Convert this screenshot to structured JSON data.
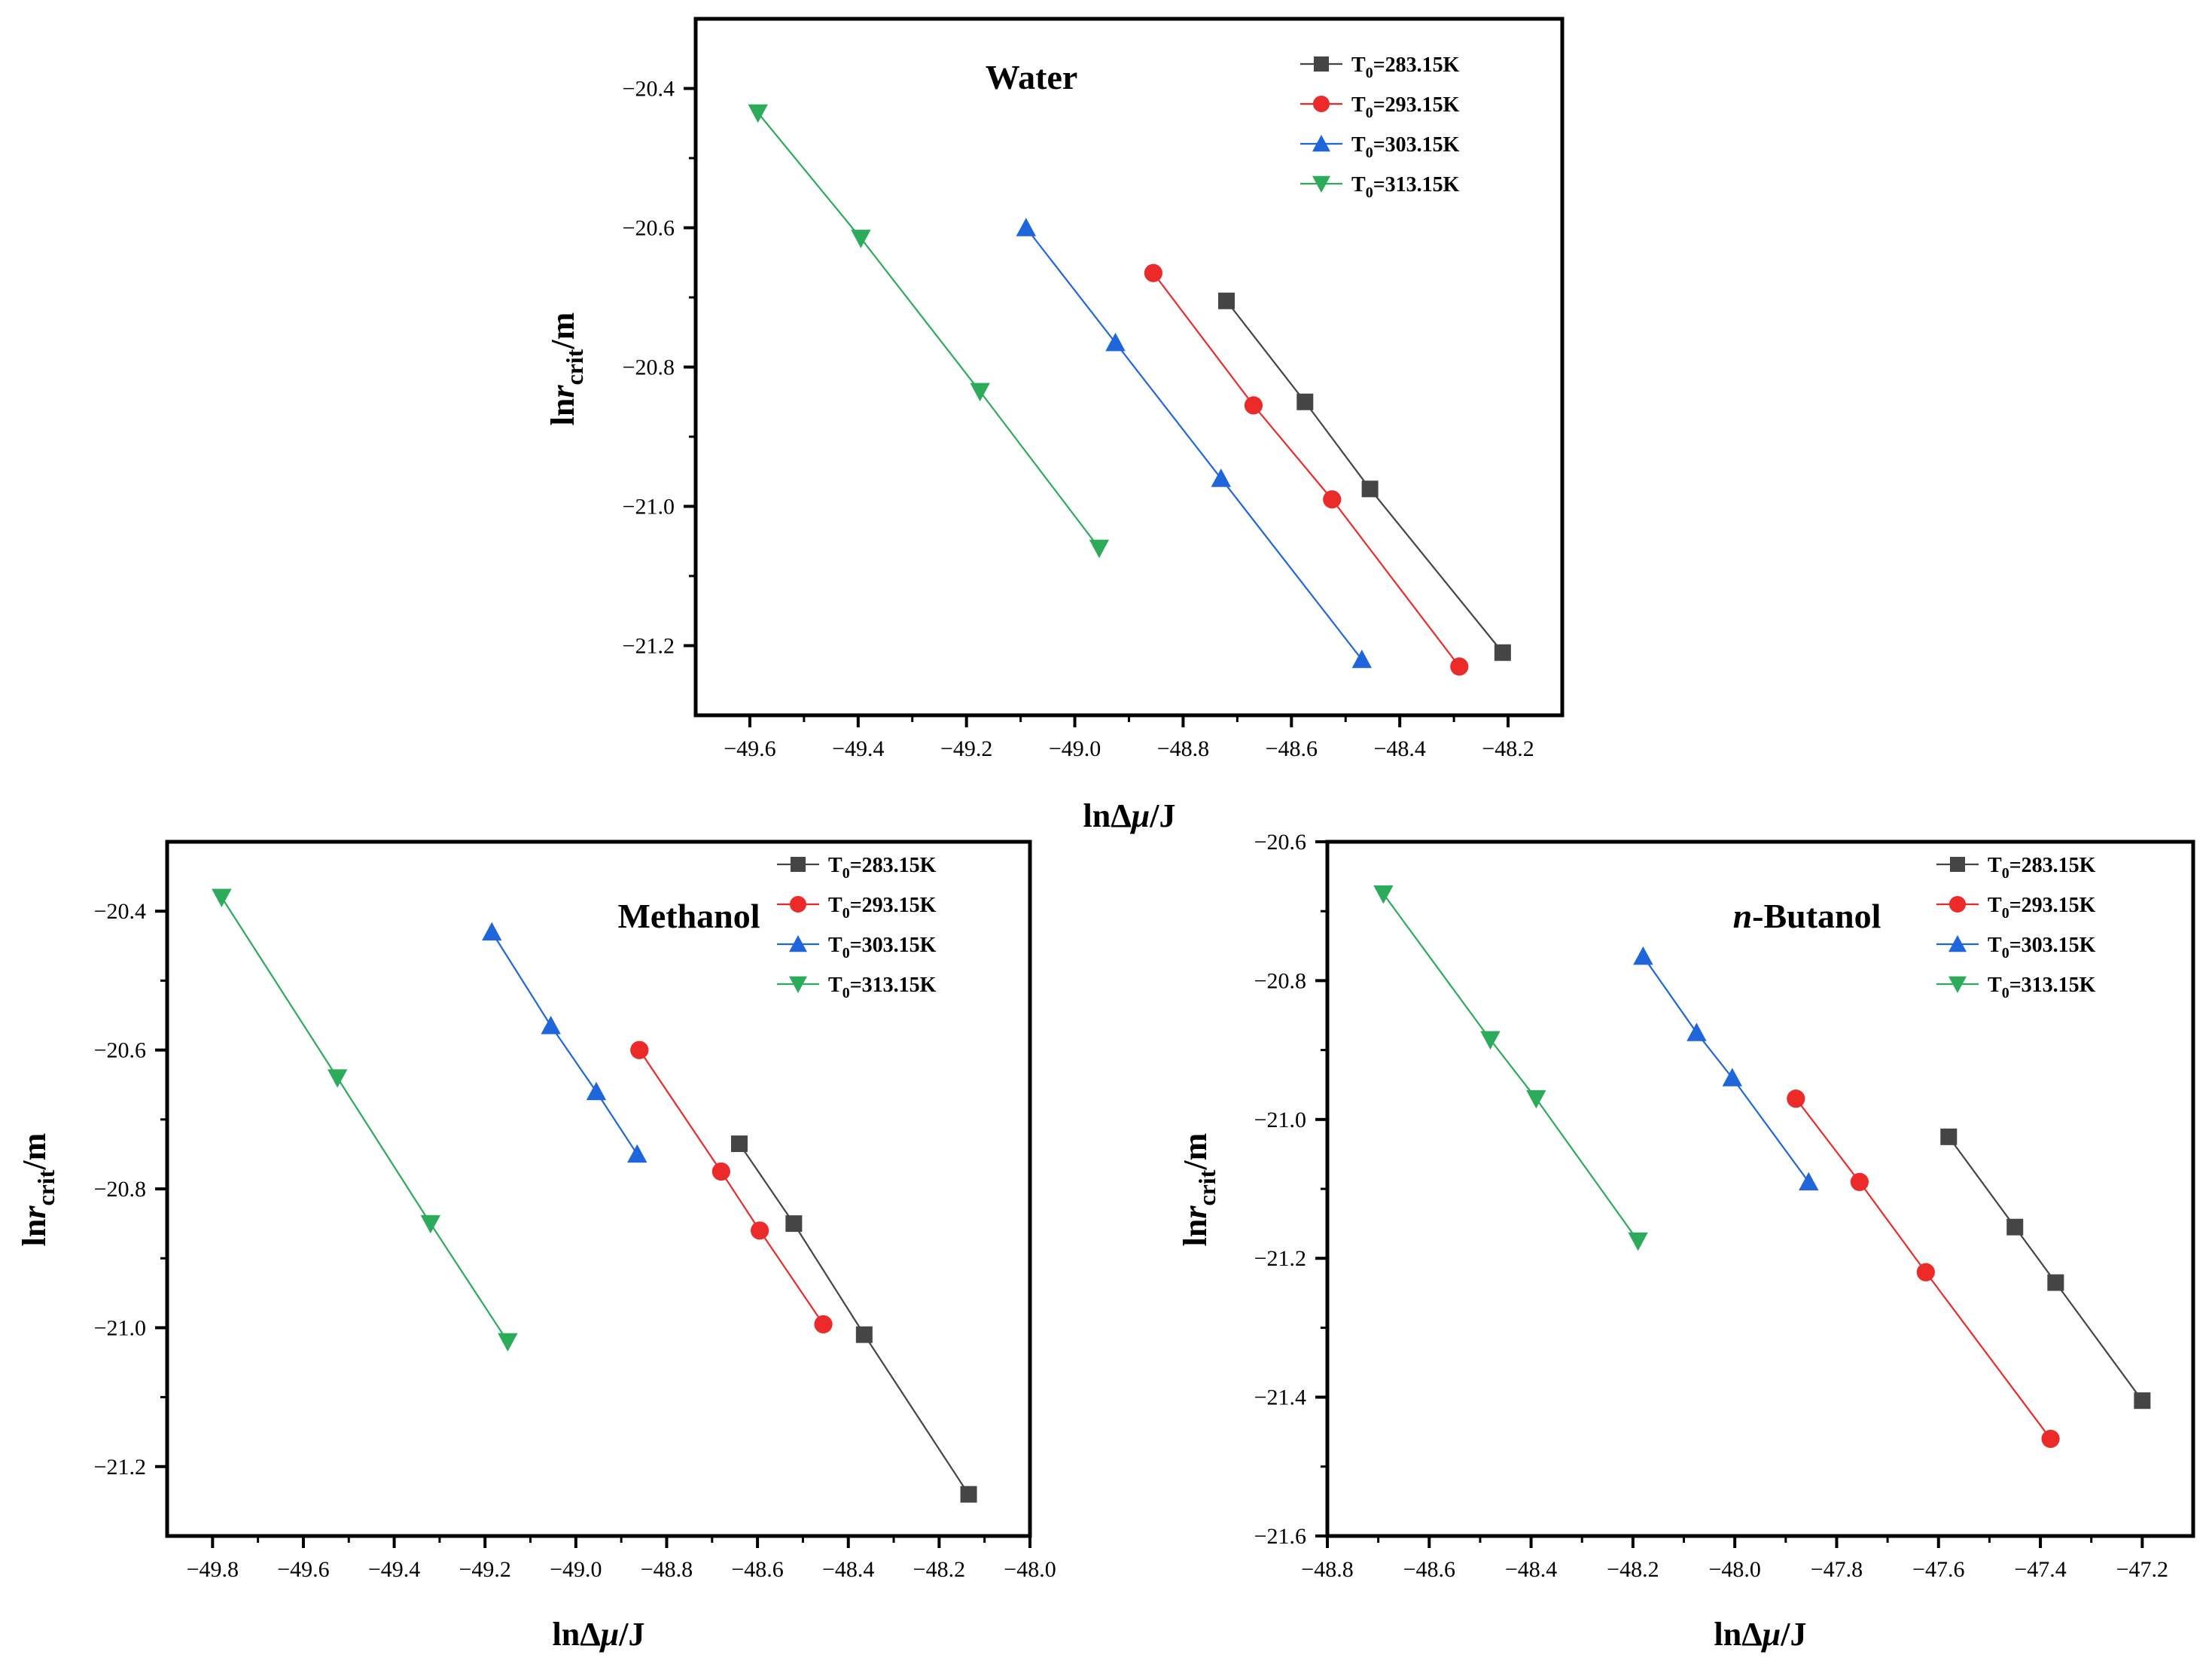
{
  "figure": {
    "legend_labels": [
      "T0=283.15K",
      "T0=293.15K",
      "T0=303.15K",
      "T0=313.15K"
    ],
    "legend_base": "T",
    "legend_sub": "0",
    "legend_suffix": [
      "=283.15K",
      "=293.15K",
      "=303.15K",
      "=313.15K"
    ],
    "series_colors": [
      "#454545",
      "#ec2a2a",
      "#1f66dd",
      "#2cab5a"
    ],
    "series_markers": [
      "square",
      "circle",
      "triangle-up",
      "triangle-down"
    ]
  },
  "chart_data": [
    {
      "type": "line",
      "title": "Water",
      "xlabel": "lnΔμ/J",
      "ylabel": "lnrcrit/m",
      "xlim": [
        -49.7,
        -48.1
      ],
      "ylim": [
        -21.3,
        -20.3
      ],
      "xticks": [
        -49.6,
        -49.4,
        -49.2,
        -49.0,
        -48.8,
        -48.6,
        -48.4,
        -48.2
      ],
      "xtick_labels": [
        "−49.6",
        "−49.4",
        "−49.2",
        "−49.0",
        "−48.8",
        "−48.6",
        "−48.4",
        "−48.2"
      ],
      "yticks": [
        -20.4,
        -20.6,
        -20.8,
        -21.0,
        -21.2
      ],
      "ytick_labels": [
        "−20.4",
        "−20.6",
        "−20.8",
        "−21.0",
        "−21.2"
      ],
      "legend": "top-right",
      "series": [
        {
          "name": "T0=283.15K",
          "x": [
            -48.72,
            -48.575,
            -48.455,
            -48.21
          ],
          "y": [
            -20.705,
            -20.85,
            -20.975,
            -21.21
          ]
        },
        {
          "name": "T0=293.15K",
          "x": [
            -48.855,
            -48.67,
            -48.525,
            -48.29
          ],
          "y": [
            -20.665,
            -20.855,
            -20.99,
            -21.23
          ]
        },
        {
          "name": "T0=303.15K",
          "x": [
            -49.09,
            -48.925,
            -48.73,
            -48.47
          ],
          "y": [
            -20.6,
            -20.765,
            -20.96,
            -21.22
          ]
        },
        {
          "name": "T0=313.15K",
          "x": [
            -49.585,
            -49.395,
            -49.175,
            -48.955
          ],
          "y": [
            -20.435,
            -20.615,
            -20.835,
            -21.06
          ]
        }
      ]
    },
    {
      "type": "line",
      "title": "Methanol",
      "xlabel": "lnΔμ/J",
      "ylabel": "lnrcrit/m",
      "xlim": [
        -49.9,
        -48.0
      ],
      "ylim": [
        -21.3,
        -20.3
      ],
      "xticks": [
        -49.8,
        -49.6,
        -49.4,
        -49.2,
        -49.0,
        -48.8,
        -48.6,
        -48.4,
        -48.2,
        -48.0
      ],
      "xtick_labels": [
        "−49.8",
        "−49.6",
        "−49.4",
        "−49.2",
        "−49.0",
        "−48.8",
        "−48.6",
        "−48.4",
        "−48.2",
        "−48.0"
      ],
      "yticks": [
        -20.4,
        -20.6,
        -20.8,
        -21.0,
        -21.2
      ],
      "ytick_labels": [
        "−20.4",
        "−20.6",
        "−20.8",
        "−21.0",
        "−21.2"
      ],
      "legend": "top-right",
      "series": [
        {
          "name": "T0=283.15K",
          "x": [
            -48.64,
            -48.52,
            -48.365,
            -48.135
          ],
          "y": [
            -20.735,
            -20.85,
            -21.01,
            -21.24
          ]
        },
        {
          "name": "T0=293.15K",
          "x": [
            -48.86,
            -48.68,
            -48.595,
            -48.455
          ],
          "y": [
            -20.6,
            -20.775,
            -20.86,
            -20.995
          ]
        },
        {
          "name": "T0=303.15K",
          "x": [
            -49.185,
            -49.055,
            -48.955,
            -48.865
          ],
          "y": [
            -20.43,
            -20.565,
            -20.66,
            -20.75
          ]
        },
        {
          "name": "T0=313.15K",
          "x": [
            -49.78,
            -49.525,
            -49.32,
            -49.15
          ],
          "y": [
            -20.38,
            -20.64,
            -20.85,
            -21.02
          ]
        }
      ]
    },
    {
      "type": "line",
      "title": "n-Butanol",
      "title_italic": "n",
      "title_rest": "-Butanol",
      "xlabel": "lnΔμ/J",
      "ylabel": "lnrcrit/m",
      "xlim": [
        -48.8,
        -47.1
      ],
      "ylim": [
        -21.6,
        -20.6
      ],
      "xticks": [
        -48.8,
        -48.6,
        -48.4,
        -48.2,
        -48.0,
        -47.8,
        -47.6,
        -47.4,
        -47.2
      ],
      "xtick_labels": [
        "−48.8",
        "−48.6",
        "−48.4",
        "−48.2",
        "−48.0",
        "−47.8",
        "−47.6",
        "−47.4",
        "−47.2"
      ],
      "yticks": [
        -20.6,
        -20.8,
        -21.0,
        -21.2,
        -21.4,
        -21.6
      ],
      "ytick_labels": [
        "−20.6",
        "−20.8",
        "−21.0",
        "−21.2",
        "−21.4",
        "−21.6"
      ],
      "legend": "top-right",
      "series": [
        {
          "name": "T0=283.15K",
          "x": [
            -47.58,
            -47.45,
            -47.37,
            -47.2
          ],
          "y": [
            -21.025,
            -21.155,
            -21.235,
            -21.405
          ]
        },
        {
          "name": "T0=293.15K",
          "x": [
            -47.88,
            -47.755,
            -47.625,
            -47.38
          ],
          "y": [
            -20.97,
            -21.09,
            -21.22,
            -21.46
          ]
        },
        {
          "name": "T0=303.15K",
          "x": [
            -48.18,
            -48.075,
            -48.005,
            -47.855
          ],
          "y": [
            -20.765,
            -20.875,
            -20.94,
            -21.09
          ]
        },
        {
          "name": "T0=313.15K",
          "x": [
            -48.69,
            -48.48,
            -48.39,
            -48.19
          ],
          "y": [
            -20.675,
            -20.885,
            -20.97,
            -21.175
          ]
        }
      ]
    }
  ]
}
